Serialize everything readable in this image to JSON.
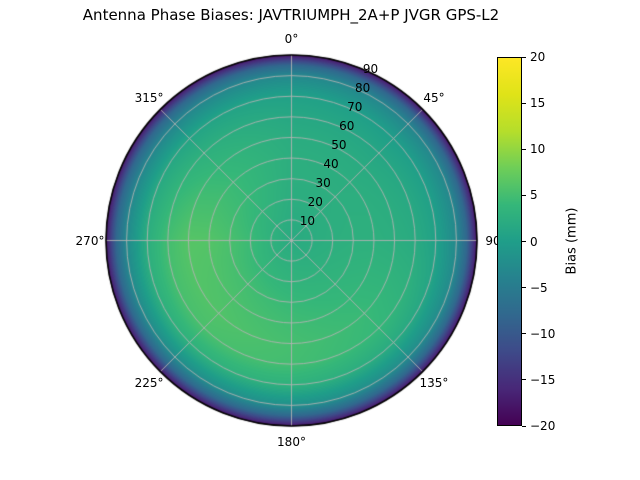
{
  "title": "Antenna Phase Biases: JAVTRIUMPH_2A+P JVGR GPS-L2",
  "chart_data": {
    "type": "heatmap",
    "projection": "polar",
    "title": "Antenna Phase Biases: JAVTRIUMPH_2A+P JVGR GPS-L2",
    "theta_tick_labels": [
      "0°",
      "45°",
      "90",
      "135°",
      "180°",
      "225°",
      "270°",
      "315°"
    ],
    "theta_tick_degrees": [
      0,
      45,
      90,
      135,
      180,
      225,
      270,
      315
    ],
    "theta_direction": "clockwise",
    "theta_zero_location": "top",
    "radial_tick_labels": [
      "10",
      "20",
      "30",
      "40",
      "50",
      "60",
      "70",
      "80",
      "90"
    ],
    "radial_tick_values": [
      10,
      20,
      30,
      40,
      50,
      60,
      70,
      80,
      90
    ],
    "radial_label_azimuth_deg": 22.5,
    "radial_max": 90,
    "grid_on": true,
    "grid_color": "#b2b2b2",
    "outline_color": "#000000",
    "colorbar": {
      "label": "Bias (mm)",
      "tick_labels": [
        "20",
        "15",
        "10",
        "5",
        "0",
        "−5",
        "−10",
        "−15",
        "−20"
      ],
      "tick_values": [
        20,
        15,
        10,
        5,
        0,
        -5,
        -10,
        -15,
        -20
      ],
      "vmin": -20,
      "vmax": 20,
      "position": "right"
    },
    "colormap": {
      "name": "viridis",
      "stops": [
        "#440154",
        "#482878",
        "#3e4a89",
        "#31688e",
        "#26828e",
        "#1f9e89",
        "#35b779",
        "#6ece58",
        "#b5de2b",
        "#dfe318",
        "#fde725"
      ]
    },
    "grid": {
      "azimuth_deg": [
        0,
        45,
        90,
        135,
        180,
        225,
        270,
        315,
        360
      ],
      "zenith_deg": [
        0,
        10,
        20,
        30,
        40,
        50,
        60,
        70,
        80,
        85,
        90
      ],
      "bias_mm": [
        [
          2.0,
          2.2,
          2.4,
          2.5,
          2.5,
          2.2,
          1.5,
          0.5,
          -3.0,
          -8.0,
          -18.0
        ],
        [
          2.0,
          2.2,
          2.4,
          2.5,
          2.4,
          2.0,
          1.2,
          0.0,
          -3.5,
          -8.0,
          -18.0
        ],
        [
          2.0,
          2.3,
          2.6,
          2.8,
          2.8,
          2.5,
          2.0,
          0.5,
          -3.0,
          -8.0,
          -18.0
        ],
        [
          2.0,
          2.5,
          3.0,
          3.5,
          4.0,
          4.3,
          4.0,
          2.0,
          -2.5,
          -8.0,
          -18.0
        ],
        [
          2.0,
          2.8,
          3.4,
          4.2,
          4.8,
          5.2,
          5.0,
          3.0,
          -2.0,
          -8.0,
          -18.0
        ],
        [
          2.0,
          3.0,
          4.0,
          5.0,
          5.6,
          6.0,
          5.5,
          3.0,
          -2.5,
          -8.0,
          -18.0
        ],
        [
          2.0,
          3.2,
          4.5,
          5.5,
          6.2,
          6.3,
          5.0,
          2.5,
          -3.0,
          -8.0,
          -18.0
        ],
        [
          2.0,
          2.8,
          3.6,
          4.2,
          4.3,
          3.8,
          2.8,
          1.0,
          -3.5,
          -8.0,
          -18.0
        ],
        [
          2.0,
          2.2,
          2.4,
          2.5,
          2.5,
          2.2,
          1.5,
          0.5,
          -3.0,
          -8.0,
          -18.0
        ]
      ]
    }
  }
}
